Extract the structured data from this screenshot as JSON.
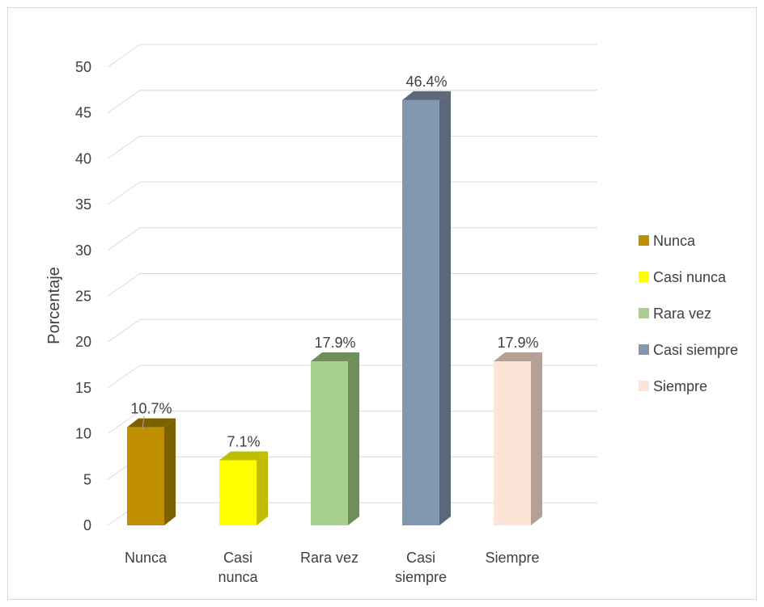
{
  "chart_data": {
    "type": "bar",
    "style": "3d-column",
    "title": "",
    "xlabel": "",
    "ylabel": "Porcentaje",
    "ylim": [
      0,
      50
    ],
    "ytick_step": 5,
    "grid": true,
    "legend_position": "right",
    "categories": [
      {
        "label": "Nunca",
        "label_lines": [
          "Nunca"
        ],
        "value": 10.7,
        "data_label": "10.7%",
        "color": "#bf8f00",
        "side_color": "#7f6000"
      },
      {
        "label": "Casi nunca",
        "label_lines": [
          "Casi",
          "nunca"
        ],
        "value": 7.1,
        "data_label": "7.1%",
        "color": "#ffff00",
        "side_color": "#bfbf00"
      },
      {
        "label": "Rara vez",
        "label_lines": [
          "Rara vez"
        ],
        "value": 17.9,
        "data_label": "17.9%",
        "color": "#a9d18e",
        "side_color": "#6f8f5a"
      },
      {
        "label": "Casi siempre",
        "label_lines": [
          "Casi",
          "siempre"
        ],
        "value": 46.4,
        "data_label": "46.4%",
        "color": "#8497b0",
        "side_color": "#5b687a"
      },
      {
        "label": "Siempre",
        "label_lines": [
          "Siempre"
        ],
        "value": 17.9,
        "data_label": "17.9%",
        "color": "#fce4d6",
        "side_color": "#b4a095"
      }
    ]
  }
}
